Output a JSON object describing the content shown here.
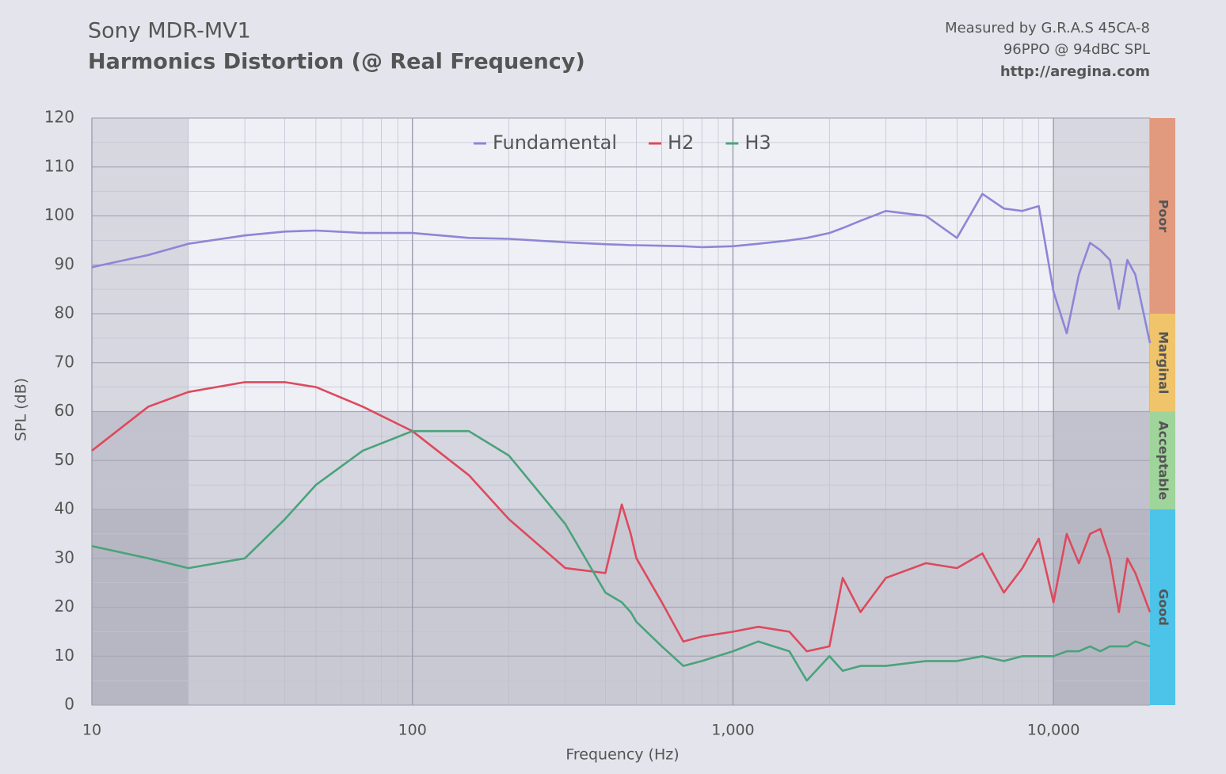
{
  "chart_data": {
    "type": "line",
    "title": "Sony MDR-MV1",
    "subtitle": "Harmonics Distortion (@ Real Frequency)",
    "notes": [
      "Measured by G.R.A.S 45CA-8",
      "96PPO @ 94dBC SPL",
      "http://aregina.com"
    ],
    "xlabel": "Frequency (Hz)",
    "ylabel": "SPL (dB)",
    "x_scale": "log",
    "grid": true,
    "legend": "top",
    "xlim": [
      10,
      20000
    ],
    "xticks": [
      10,
      100,
      {
        "value": 1000,
        "label": "1,000"
      },
      {
        "value": 10000,
        "label": "10,000"
      }
    ],
    "ylim": [
      0,
      120
    ],
    "yticks": [
      0,
      10,
      20,
      30,
      40,
      50,
      60,
      70,
      80,
      90,
      100,
      110,
      120
    ],
    "x": [
      10,
      15,
      20,
      30,
      40,
      50,
      70,
      100,
      150,
      200,
      300,
      400,
      450,
      480,
      500,
      600,
      700,
      800,
      1000,
      1200,
      1500,
      1700,
      2000,
      2200,
      2500,
      3000,
      4000,
      5000,
      6000,
      7000,
      8000,
      9000,
      10000,
      11000,
      12000,
      13000,
      14000,
      15000,
      16000,
      17000,
      18000,
      20000
    ],
    "series": [
      {
        "name": "Fundamental",
        "color": "#8c86d6",
        "values": [
          89.5,
          92,
          94.3,
          96,
          96.8,
          97,
          96.5,
          96.5,
          95.5,
          95.3,
          94.6,
          94.2,
          94.1,
          94,
          94,
          93.9,
          93.8,
          93.6,
          93.8,
          94.3,
          95,
          95.5,
          96.5,
          97.5,
          99,
          101,
          100,
          95.5,
          104.5,
          101.5,
          101,
          102,
          84.5,
          76,
          88,
          94.5,
          93,
          91,
          81,
          91,
          88,
          74
        ]
      },
      {
        "name": "H2",
        "color": "#dd4a5c",
        "values": [
          52,
          61,
          64,
          66,
          66,
          65,
          61,
          56,
          47,
          38,
          28,
          27,
          41,
          35,
          30,
          21,
          13,
          14,
          15,
          16,
          15,
          11,
          12,
          26,
          19,
          26,
          29,
          28,
          31,
          23,
          28,
          34,
          21,
          35,
          29,
          35,
          36,
          30,
          19,
          30,
          27,
          19
        ]
      },
      {
        "name": "H3",
        "color": "#4aa37a",
        "values": [
          32.5,
          30,
          28,
          30,
          38,
          45,
          52,
          56,
          56,
          51,
          37,
          23,
          21,
          19,
          17,
          12,
          8,
          9,
          11,
          13,
          11,
          5,
          10,
          7,
          8,
          8,
          9,
          9,
          10,
          9,
          10,
          10,
          10,
          11,
          11,
          12,
          11,
          12,
          12,
          12,
          13,
          12
        ]
      }
    ],
    "rating_bands": [
      {
        "label": "Poor",
        "from": 80,
        "to": 120,
        "color": "#e29a7e"
      },
      {
        "label": "Marginal",
        "from": 60,
        "to": 80,
        "color": "#efc46a"
      },
      {
        "label": "Acceptable",
        "from": 40,
        "to": 60,
        "color": "#9fd49a"
      },
      {
        "label": "Good",
        "from": 0,
        "to": 40,
        "color": "#4cc4ea"
      }
    ]
  }
}
